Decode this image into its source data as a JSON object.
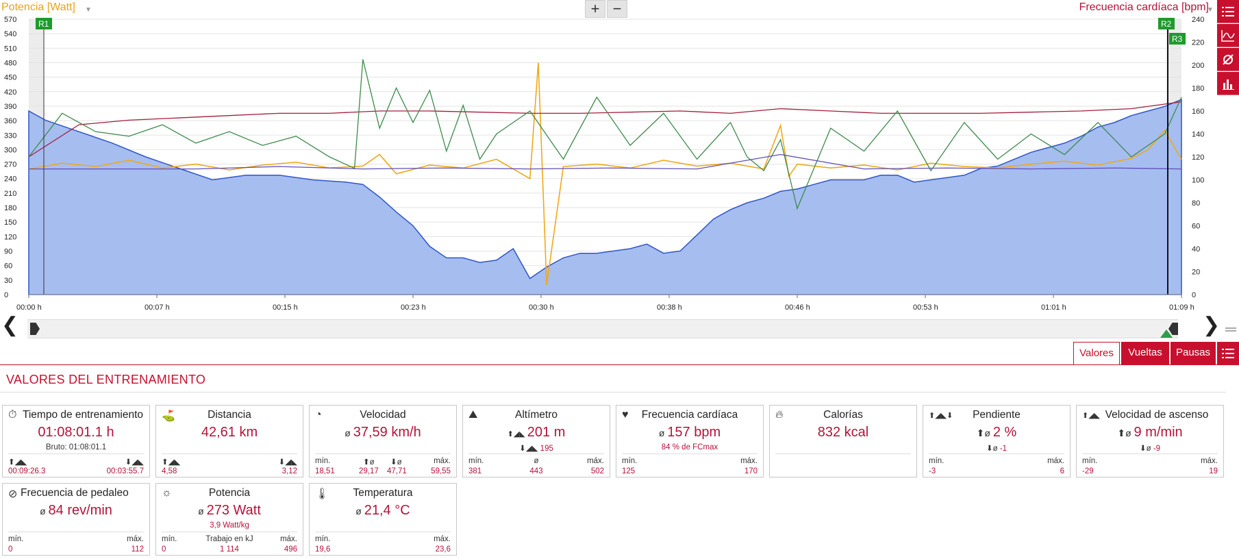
{
  "header": {
    "left_axis_title": "Potencia [Watt]",
    "right_axis_title": "Frecuencia cardíaca [bpm]",
    "zoom_in": "+",
    "zoom_out": "−"
  },
  "side_buttons": [
    "list-icon",
    "line-chart-icon",
    "average-icon",
    "bar-chart-icon"
  ],
  "chart_data": {
    "type": "line",
    "x_ticks": [
      "00:00 h",
      "00:07 h",
      "00:15 h",
      "00:23 h",
      "00:30 h",
      "00:38 h",
      "00:46 h",
      "00:53 h",
      "01:01 h",
      "01:09 h"
    ],
    "y_left_ticks": [
      0,
      30,
      60,
      90,
      120,
      150,
      180,
      210,
      240,
      270,
      300,
      330,
      360,
      390,
      420,
      450,
      480,
      510,
      540,
      570
    ],
    "y_right_ticks": [
      0,
      20,
      40,
      60,
      80,
      100,
      120,
      140,
      160,
      180,
      200,
      220,
      240
    ],
    "ylim_left": [
      0,
      570
    ],
    "ylim_right": [
      0,
      240
    ],
    "xlim_min": [
      0,
      69
    ],
    "markers": [
      "R1",
      "R2",
      "R3"
    ],
    "series": [
      {
        "axis": "left",
        "color": "#f0a818",
        "x": [
          0,
          2,
          4,
          6,
          8,
          10,
          12,
          14,
          16,
          18,
          20,
          21,
          22,
          24,
          26,
          28,
          30,
          30.5,
          31,
          32,
          34,
          36,
          38,
          40,
          42,
          44,
          45,
          45.5,
          46,
          48,
          50,
          52,
          54,
          56,
          58,
          60,
          62,
          64,
          66,
          67,
          68,
          69
        ],
        "values": [
          260,
          272,
          265,
          278,
          262,
          270,
          258,
          268,
          274,
          262,
          266,
          290,
          250,
          268,
          262,
          280,
          240,
          480,
          20,
          265,
          270,
          262,
          278,
          266,
          272,
          260,
          350,
          245,
          270,
          262,
          268,
          258,
          272,
          265,
          262,
          270,
          276,
          268,
          282,
          300,
          340,
          280
        ]
      },
      {
        "axis": "right",
        "color": "#a31d3a",
        "x": [
          0,
          3,
          6,
          9,
          12,
          15,
          18,
          21,
          24,
          27,
          30,
          33,
          36,
          39,
          42,
          45,
          48,
          51,
          54,
          57,
          60,
          63,
          66,
          69
        ],
        "values": [
          120,
          148,
          152,
          154,
          156,
          158,
          158,
          160,
          160,
          159,
          158,
          158,
          159,
          160,
          158,
          162,
          160,
          158,
          158,
          158,
          159,
          160,
          162,
          168
        ]
      },
      {
        "axis": "right",
        "color": "#3b8a4a",
        "x": [
          0,
          2,
          4,
          6,
          8,
          10,
          12,
          14,
          16,
          18,
          19.5,
          20,
          21,
          22,
          23,
          24,
          25,
          26,
          27,
          28,
          30,
          32,
          34,
          36,
          38,
          40,
          42,
          43,
          44,
          45,
          46,
          48,
          50,
          52,
          54,
          56,
          58,
          60,
          62,
          64,
          66,
          68,
          69
        ],
        "values": [
          120,
          158,
          142,
          138,
          148,
          132,
          142,
          130,
          138,
          120,
          110,
          205,
          145,
          180,
          150,
          178,
          125,
          165,
          118,
          140,
          160,
          118,
          172,
          130,
          158,
          118,
          150,
          120,
          108,
          135,
          75,
          145,
          125,
          160,
          108,
          150,
          118,
          140,
          122,
          150,
          120,
          140,
          172
        ]
      },
      {
        "axis": "left",
        "color": "#5e4fb8",
        "x": [
          0,
          5,
          10,
          15,
          20,
          25,
          30,
          35,
          40,
          45,
          50,
          55,
          60,
          65,
          69
        ],
        "values": [
          260,
          260,
          260,
          265,
          260,
          262,
          260,
          262,
          260,
          290,
          260,
          262,
          260,
          262,
          260
        ]
      },
      {
        "axis": "right",
        "color": "#6f8fd8",
        "label": "Altímetro",
        "x": [
          0,
          1,
          3,
          5,
          7,
          9,
          11,
          13,
          15,
          17,
          19,
          20,
          21,
          22,
          23,
          24,
          25,
          26,
          27,
          28,
          29,
          30,
          31,
          32,
          33,
          34,
          35,
          36,
          37,
          38,
          39,
          40,
          41,
          42,
          43,
          44,
          45,
          46,
          47,
          48,
          49,
          50,
          51,
          52,
          53,
          54,
          55,
          56,
          57,
          58,
          59,
          60,
          61,
          62,
          63,
          64,
          65,
          66,
          67,
          68,
          69
        ],
        "values": [
          160,
          152,
          142,
          132,
          120,
          110,
          100,
          104,
          104,
          100,
          98,
          96,
          85,
          72,
          60,
          42,
          32,
          32,
          28,
          30,
          40,
          14,
          24,
          32,
          36,
          36,
          38,
          40,
          44,
          36,
          38,
          52,
          66,
          74,
          80,
          84,
          90,
          92,
          96,
          100,
          100,
          100,
          104,
          104,
          98,
          100,
          102,
          104,
          110,
          112,
          118,
          124,
          128,
          132,
          138,
          146,
          150,
          156,
          160,
          164,
          170
        ]
      }
    ]
  },
  "tabs": {
    "valores": "Valores",
    "vueltas": "Vueltas",
    "pausas": "Pausas"
  },
  "section_title": "VALORES DEL ENTRENAMIENTO",
  "cards": {
    "tiempo": {
      "title": "Tiempo de entrenamiento",
      "value": "01:08:01.1 h",
      "sub": "Bruto:  01:08:01.1",
      "l_num": "00:09:26.3",
      "r_num": "00:03:55.7"
    },
    "distancia": {
      "title": "Distancia",
      "value": "42,61 km",
      "l_num": "4,58",
      "r_num": "3,12"
    },
    "velocidad": {
      "title": "Velocidad",
      "value": "37,59 km/h",
      "l_lbl": "mín.",
      "r_lbl": "máx.",
      "l_num": "18,51",
      "c1_num": "29,17",
      "c2_num": "47,71",
      "r_num": "59,55"
    },
    "altimetro": {
      "title": "Altímetro",
      "value": "201 m",
      "sub": "195",
      "l_lbl": "mín.",
      "c_lbl": "ø",
      "r_lbl": "máx.",
      "l_num": "381",
      "c_num": "443",
      "r_num": "502"
    },
    "fc": {
      "title": "Frecuencia cardíaca",
      "value": "157 bpm",
      "sub": "84 % de FCmax",
      "l_lbl": "mín.",
      "r_lbl": "máx.",
      "l_num": "125",
      "r_num": "170"
    },
    "calorias": {
      "title": "Calorías",
      "value": "832 kcal"
    },
    "pendiente": {
      "title": "Pendiente",
      "value": "2 %",
      "sub": "-1",
      "l_lbl": "mín.",
      "r_lbl": "máx.",
      "l_num": "-3",
      "r_num": "6"
    },
    "vel_ascenso": {
      "title": "Velocidad de ascenso",
      "value": "9 m/min",
      "sub": "-9",
      "l_lbl": "mín.",
      "r_lbl": "máx.",
      "l_num": "-29",
      "r_num": "19"
    },
    "cadencia": {
      "title": "Frecuencia de pedaleo",
      "value": "84 rev/min",
      "l_lbl": "mín.",
      "r_lbl": "máx.",
      "l_num": "0",
      "r_num": "112"
    },
    "potencia": {
      "title": "Potencia",
      "value": "273 Watt",
      "sub": "3,9 Watt/kg",
      "l_lbl": "mín.",
      "c_lbl": "Trabajo en kJ",
      "r_lbl": "máx.",
      "l_num": "0",
      "c_num": "1 114",
      "r_num": "496"
    },
    "temperatura": {
      "title": "Temperatura",
      "value": "21,4 °C",
      "l_lbl": "mín.",
      "r_lbl": "máx.",
      "l_num": "19,6",
      "r_num": "23,6"
    }
  }
}
